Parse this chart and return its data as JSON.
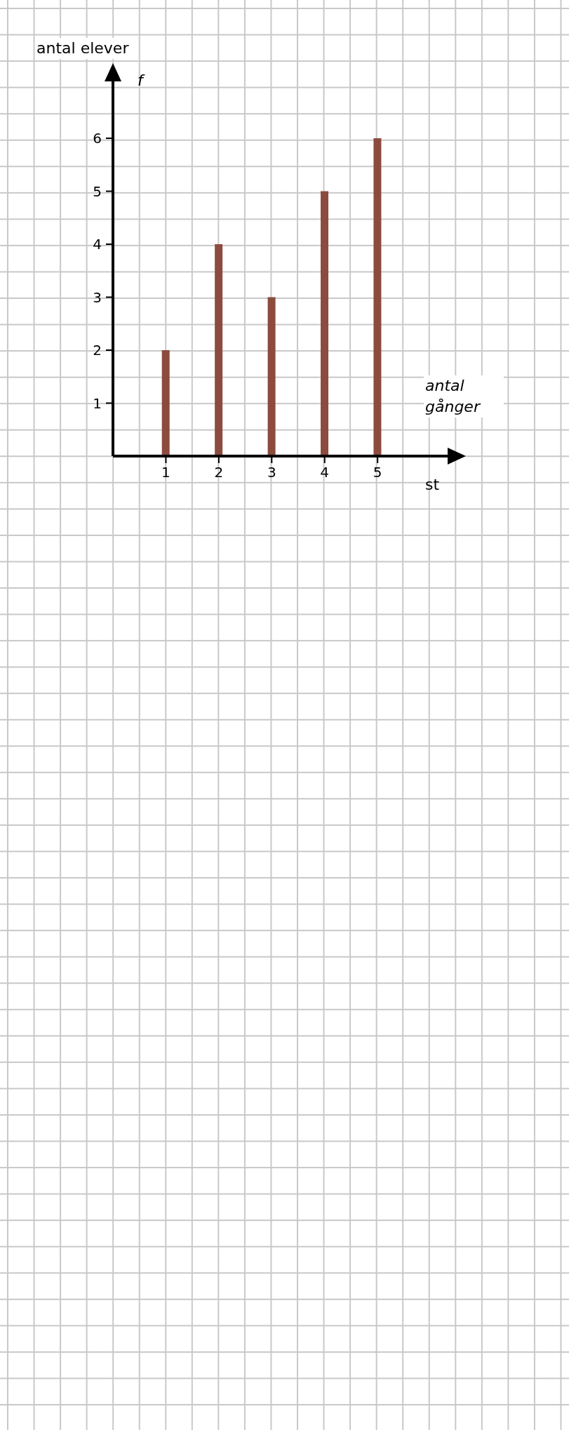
{
  "chart_data": {
    "type": "bar",
    "xlabel": "antal gånger",
    "ylabel": "antal elever",
    "annotations": [
      "f",
      "st"
    ],
    "x": [
      1,
      2,
      3,
      4,
      5
    ],
    "values": [
      2,
      4,
      3,
      5,
      6
    ],
    "color": "#8c4b3e",
    "xlim": [
      0,
      6.35
    ],
    "ylim": [
      0,
      7.1
    ],
    "xticks": [
      1,
      2,
      3,
      4,
      5
    ],
    "yticks": [
      1,
      2,
      3,
      4,
      5,
      6
    ]
  }
}
